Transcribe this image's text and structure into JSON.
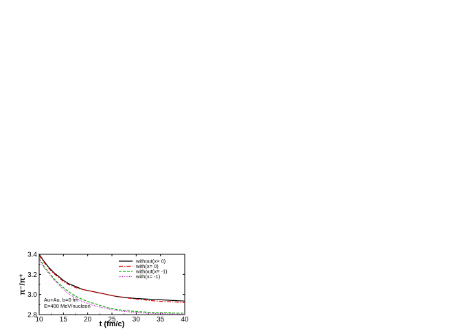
{
  "chart_data": {
    "type": "line",
    "xlabel": "t (fm/c)",
    "ylabel": "π⁻/π⁺",
    "xlim": [
      10,
      40
    ],
    "ylim": [
      2.8,
      3.4
    ],
    "xticks": [
      "10",
      "15",
      "20",
      "25",
      "30",
      "35",
      "40"
    ],
    "yticks": [
      "2.8",
      "3.0",
      "3.2",
      "3.4"
    ],
    "annotations": [
      "Au+Au, b=0 fm",
      "E=400 MeV/nucleon"
    ],
    "legend_position": "top-right",
    "series": [
      {
        "name": "without(x= 0)",
        "color": "#000000",
        "dash": "solid",
        "x": [
          10,
          11,
          12,
          13,
          14,
          15,
          16,
          17,
          18,
          19,
          20,
          22,
          24,
          26,
          28,
          30,
          32,
          34,
          36,
          38,
          40
        ],
        "y": [
          3.4,
          3.33,
          3.27,
          3.22,
          3.18,
          3.14,
          3.11,
          3.09,
          3.07,
          3.05,
          3.04,
          3.02,
          3.0,
          2.98,
          2.97,
          2.96,
          2.955,
          2.95,
          2.945,
          2.94,
          2.935
        ]
      },
      {
        "name": "with(x= 0)",
        "color": "#e00000",
        "dash": "dashdot",
        "x": [
          10,
          11,
          12,
          13,
          14,
          15,
          16,
          17,
          18,
          19,
          20,
          22,
          24,
          26,
          28,
          30,
          32,
          34,
          36,
          38,
          40
        ],
        "y": [
          3.39,
          3.32,
          3.26,
          3.21,
          3.17,
          3.13,
          3.1,
          3.08,
          3.06,
          3.05,
          3.04,
          3.02,
          3.0,
          2.98,
          2.965,
          2.955,
          2.945,
          2.935,
          2.93,
          2.925,
          2.92
        ]
      },
      {
        "name": "without(x= -1)",
        "color": "#00b000",
        "dash": "dashed",
        "x": [
          10,
          11,
          12,
          13,
          14,
          15,
          16,
          17,
          18,
          19,
          20,
          22,
          24,
          26,
          28,
          30,
          32,
          34,
          36,
          38,
          40
        ],
        "y": [
          3.36,
          3.28,
          3.22,
          3.16,
          3.11,
          3.07,
          3.03,
          3.0,
          2.97,
          2.95,
          2.93,
          2.9,
          2.87,
          2.85,
          2.84,
          2.83,
          2.825,
          2.82,
          2.82,
          2.815,
          2.815
        ]
      },
      {
        "name": "with(x= -1)",
        "color": "#c000c0",
        "dash": "dotted",
        "x": [
          10,
          11,
          12,
          13,
          14,
          15,
          16,
          17,
          18,
          19,
          20,
          22,
          24,
          26,
          28,
          30,
          32,
          34,
          36,
          38,
          40
        ],
        "y": [
          3.35,
          3.27,
          3.21,
          3.15,
          3.1,
          3.05,
          3.01,
          2.98,
          2.95,
          2.93,
          2.91,
          2.88,
          2.86,
          2.84,
          2.83,
          2.82,
          2.815,
          2.81,
          2.81,
          2.805,
          2.805
        ]
      }
    ]
  }
}
